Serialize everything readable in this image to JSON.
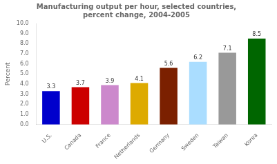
{
  "chart_data": {
    "type": "bar",
    "title": "Manufacturing output per hour, selected countries,\npercent change, 2004-2005",
    "categories": [
      "U.S.",
      "Canada",
      "France",
      "Netherlands",
      "Germany",
      "Sweden",
      "Taiwan",
      "Korea"
    ],
    "values": [
      3.3,
      3.7,
      3.9,
      4.1,
      5.6,
      6.2,
      7.1,
      8.5
    ],
    "colors": [
      "#0000cc",
      "#cc0000",
      "#cc88cc",
      "#ddaa00",
      "#7b2000",
      "#aaddff",
      "#999999",
      "#006600"
    ],
    "ylabel": "Percent",
    "ylim": [
      0,
      10.0
    ],
    "yticks": [
      {
        "value": 0,
        "label": "0.0"
      },
      {
        "value": 1,
        "label": "1.0"
      },
      {
        "value": 2,
        "label": "2.0"
      },
      {
        "value": 3,
        "label": "3.0"
      },
      {
        "value": 4,
        "label": "4.0"
      },
      {
        "value": 5,
        "label": "5.0"
      },
      {
        "value": 6,
        "label": "6.0"
      },
      {
        "value": 7,
        "label": "7.0"
      },
      {
        "value": 8,
        "label": "8.0"
      },
      {
        "value": 9,
        "label": "9.0"
      },
      {
        "value": 10,
        "label": "10.0"
      }
    ],
    "grid": false,
    "data_labels": true
  }
}
